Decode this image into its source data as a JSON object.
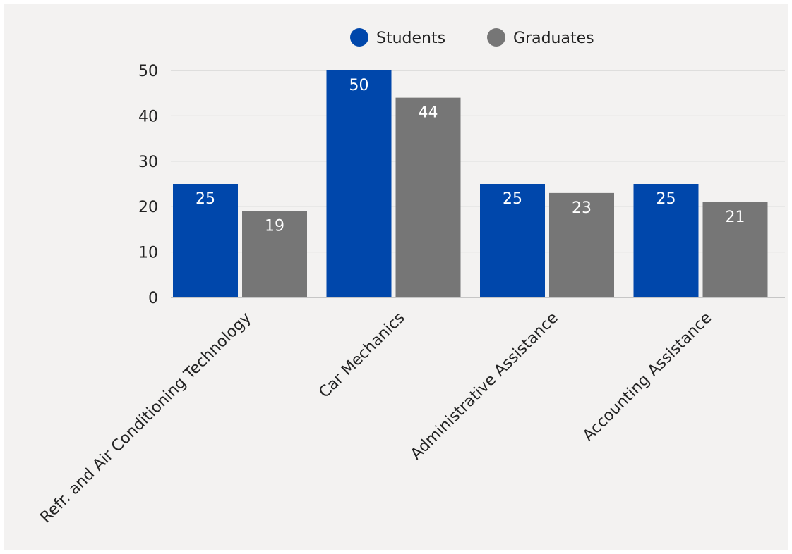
{
  "chart_data": {
    "type": "bar",
    "title": "",
    "xlabel": "",
    "ylabel": "",
    "categories": [
      "Refr. and Air Conditioning Technology",
      "Car Mechanics",
      "Administrative Assistance",
      "Accounting Assistance"
    ],
    "series": [
      {
        "name": "Students",
        "color": "#0047ab",
        "values": [
          25,
          50,
          25,
          25
        ]
      },
      {
        "name": "Graduates",
        "color": "#767676",
        "values": [
          19,
          44,
          23,
          21
        ]
      }
    ],
    "ylim": [
      0,
      50
    ],
    "yticks": [
      0,
      10,
      20,
      30,
      40,
      50
    ],
    "grid": true,
    "legend": "top-center",
    "data_labels": true
  }
}
